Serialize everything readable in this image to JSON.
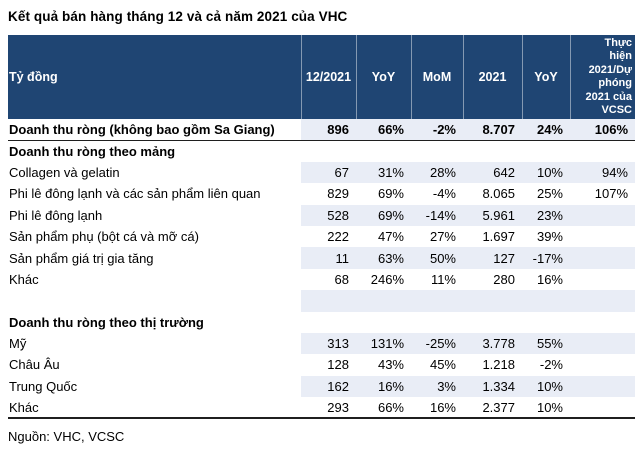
{
  "page": {
    "title": "Kết quả bán hàng tháng 12 và cả năm 2021 của VHC",
    "source": "Nguồn: VHC, VCSC"
  },
  "colors": {
    "header_bg": "#1F4573",
    "header_text": "#FFFFFF",
    "shaded_row": "#E9EDF6",
    "rule_dark": "#1F1F1F"
  },
  "table": {
    "columns": [
      "Tỷ đồng",
      "12/2021",
      "YoY",
      "MoM",
      "2021",
      "YoY",
      "Thực\nhiện\n2021/Dự\nphóng\n2021 của\nVCSC"
    ],
    "last_column_full_text": "Thực hiện 2021/Dự phóng 2021 của VCSC",
    "rows": [
      {
        "label": "Doanh thu ròng (không bao gồm Sa Giang)",
        "bold": true,
        "underline": true,
        "shaded": true,
        "values": [
          "896",
          "66%",
          "-2%",
          "8.707",
          "24%",
          "106%"
        ]
      },
      {
        "label": "Doanh thu ròng theo mảng",
        "bold": true,
        "underline": false,
        "shaded": false,
        "values": [
          "",
          "",
          "",
          "",
          "",
          ""
        ]
      },
      {
        "label": "Collagen và gelatin",
        "bold": false,
        "underline": false,
        "shaded": true,
        "values": [
          "67",
          "31%",
          "28%",
          "642",
          "10%",
          "94%"
        ]
      },
      {
        "label": "Phi lê đông lạnh và các sản phẩm liên quan",
        "bold": false,
        "underline": false,
        "shaded": false,
        "values": [
          "829",
          "69%",
          "-4%",
          "8.065",
          "25%",
          "107%"
        ]
      },
      {
        "label": "Phi lê đông lạnh",
        "bold": false,
        "underline": false,
        "shaded": true,
        "values": [
          "528",
          "69%",
          "-14%",
          "5.961",
          "23%",
          ""
        ]
      },
      {
        "label": "Sản phẩm phụ (bột cá và mỡ cá)",
        "bold": false,
        "underline": false,
        "shaded": false,
        "values": [
          "222",
          "47%",
          "27%",
          "1.697",
          "39%",
          ""
        ]
      },
      {
        "label": "Sản phẩm giá trị gia tăng",
        "bold": false,
        "underline": false,
        "shaded": true,
        "values": [
          "11",
          "63%",
          "50%",
          "127",
          "-17%",
          ""
        ]
      },
      {
        "label": "Khác",
        "bold": false,
        "underline": false,
        "shaded": false,
        "values": [
          "68",
          "246%",
          "11%",
          "280",
          "16%",
          ""
        ]
      },
      {
        "label": "",
        "bold": false,
        "underline": false,
        "shaded": true,
        "values": [
          "",
          "",
          "",
          "",
          "",
          ""
        ]
      },
      {
        "label": "Doanh thu ròng theo thị trường",
        "bold": true,
        "underline": false,
        "shaded": false,
        "values": [
          "",
          "",
          "",
          "",
          "",
          ""
        ]
      },
      {
        "label": "Mỹ",
        "bold": false,
        "underline": false,
        "shaded": true,
        "values": [
          "313",
          "131%",
          "-25%",
          "3.778",
          "55%",
          ""
        ]
      },
      {
        "label": "Châu Âu",
        "bold": false,
        "underline": false,
        "shaded": false,
        "values": [
          "128",
          "43%",
          "45%",
          "1.218",
          "-2%",
          ""
        ]
      },
      {
        "label": "Trung Quốc",
        "bold": false,
        "underline": false,
        "shaded": true,
        "values": [
          "162",
          "16%",
          "3%",
          "1.334",
          "10%",
          ""
        ]
      },
      {
        "label": "Khác",
        "bold": false,
        "underline": false,
        "shaded": false,
        "values": [
          "293",
          "66%",
          "16%",
          "2.377",
          "10%",
          ""
        ]
      }
    ]
  }
}
